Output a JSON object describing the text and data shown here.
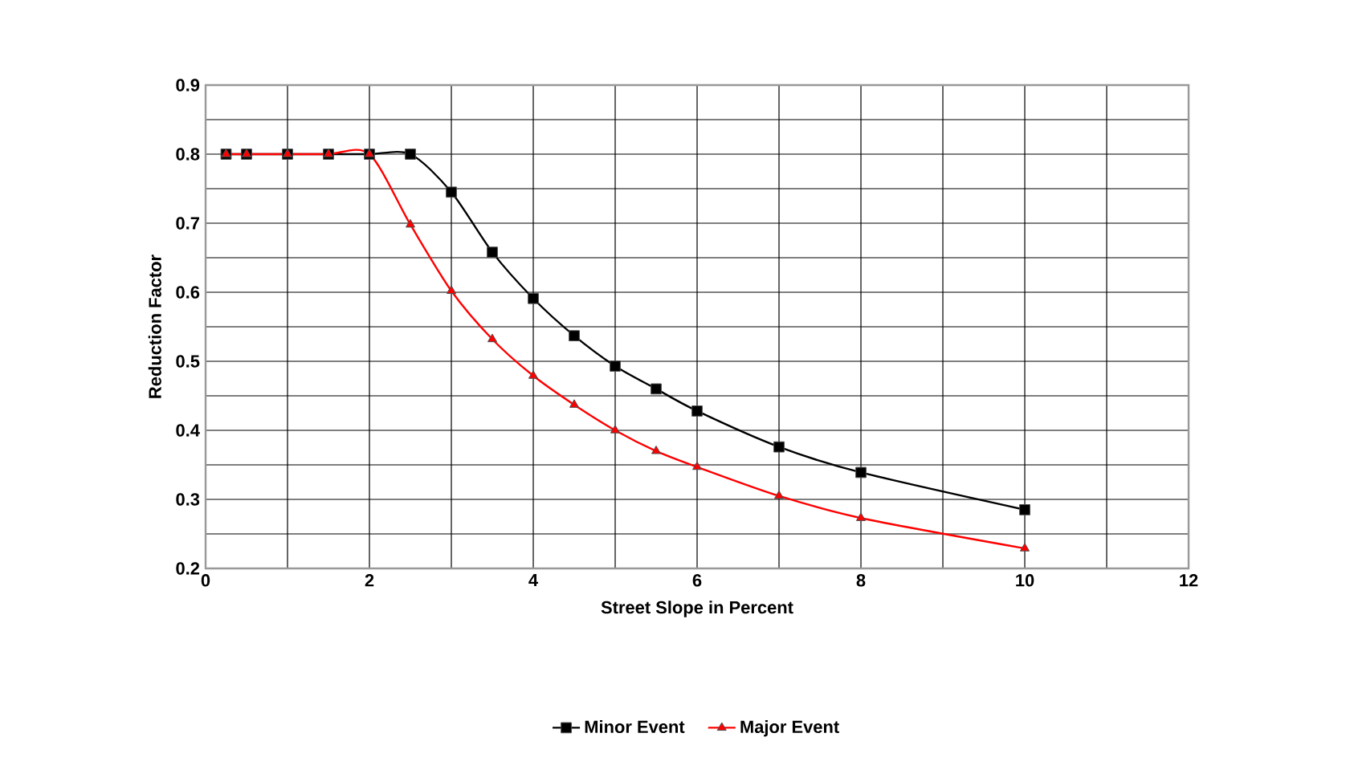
{
  "chart_data": {
    "type": "line",
    "xlabel": "Street Slope in Percent",
    "ylabel": "Reduction Factor",
    "series": [
      {
        "name": "Minor Event",
        "color": "#000000",
        "marker": "square",
        "x": [
          0.25,
          0.5,
          1,
          1.5,
          2,
          2.5,
          3,
          3.5,
          4,
          4.5,
          5,
          5.5,
          6,
          7,
          8,
          10
        ],
        "values": [
          0.8,
          0.8,
          0.8,
          0.8,
          0.8,
          0.8,
          0.745,
          0.658,
          0.591,
          0.537,
          0.493,
          0.46,
          0.428,
          0.376,
          0.339,
          0.285
        ]
      },
      {
        "name": "Major Event",
        "color": "#ff0000",
        "marker": "triangle",
        "x": [
          0.25,
          0.5,
          1,
          1.5,
          2,
          2.5,
          3,
          3.5,
          4,
          4.5,
          5,
          5.5,
          6,
          7,
          8,
          10
        ],
        "values": [
          0.8,
          0.8,
          0.8,
          0.8,
          0.8,
          0.698,
          0.602,
          0.532,
          0.479,
          0.437,
          0.4,
          0.37,
          0.347,
          0.305,
          0.273,
          0.229
        ]
      }
    ],
    "xlim": [
      0,
      12
    ],
    "ylim": [
      0.2,
      0.9
    ],
    "xticks": [
      0,
      {
        "value": 1,
        "label": null
      },
      2,
      {
        "value": 3,
        "label": null
      },
      4,
      {
        "value": 5,
        "label": null
      },
      6,
      {
        "value": 7,
        "label": null
      },
      8,
      {
        "value": 9,
        "label": null
      },
      10,
      {
        "value": 11,
        "label": null
      },
      12
    ],
    "yticks": [
      0.2,
      {
        "value": 0.25,
        "label": null
      },
      0.3,
      {
        "value": 0.35,
        "label": null
      },
      0.4,
      {
        "value": 0.45,
        "label": null
      },
      0.5,
      {
        "value": 0.55,
        "label": null
      },
      0.6,
      {
        "value": 0.65,
        "label": null
      },
      0.7,
      {
        "value": 0.75,
        "label": null
      },
      0.8,
      {
        "value": 0.85,
        "label": null
      },
      0.9
    ],
    "grid": true,
    "legend": "bottom",
    "line_style": "solid"
  }
}
